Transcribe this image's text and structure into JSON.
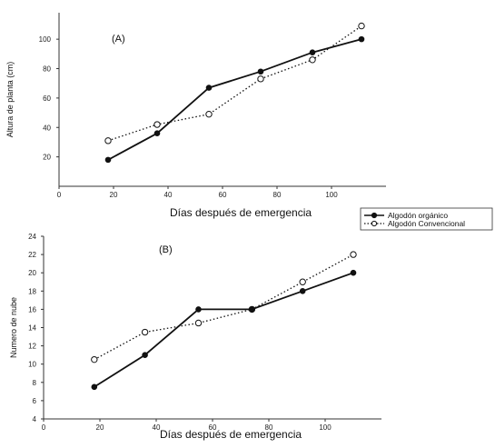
{
  "chart_data": [
    {
      "type": "line",
      "panel_label": "(A)",
      "xlabel": "Días después de emergencia",
      "ylabel": "Altura de planta (cm)",
      "x_ticks": [
        "0",
        "20",
        "40",
        "60",
        "80",
        "100"
      ],
      "y_ticks": [
        "20",
        "40",
        "60",
        "80",
        "100"
      ],
      "xlim": [
        0,
        120
      ],
      "ylim": [
        0,
        118
      ],
      "series": [
        {
          "name": "Algodón orgánico",
          "color": "#111111",
          "style": "solid",
          "marker": "filled-circle",
          "x": [
            18,
            36,
            55,
            74,
            93,
            111
          ],
          "y": [
            18,
            36,
            67,
            78,
            91,
            100
          ]
        },
        {
          "name": "Algodón Convencional",
          "color": "#111111",
          "style": "dotted",
          "marker": "open-circle",
          "x": [
            18,
            36,
            55,
            74,
            93,
            111
          ],
          "y": [
            31,
            42,
            49,
            73,
            86,
            109
          ]
        }
      ]
    },
    {
      "type": "line",
      "panel_label": "(B)",
      "xlabel": "Días después de emergencia",
      "ylabel": "Numero de nube",
      "x_ticks": [
        "0",
        "20",
        "40",
        "60",
        "80",
        "100"
      ],
      "y_ticks": [
        "4",
        "6",
        "8",
        "10",
        "12",
        "14",
        "16",
        "18",
        "20",
        "22",
        "24"
      ],
      "xlim": [
        0,
        120
      ],
      "ylim": [
        4,
        24
      ],
      "series": [
        {
          "name": "Algodón orgánico",
          "color": "#111111",
          "style": "solid",
          "marker": "filled-circle",
          "x": [
            18,
            36,
            55,
            74,
            92,
            110
          ],
          "y": [
            7.5,
            11,
            16,
            16,
            18,
            20
          ]
        },
        {
          "name": "Algodón Convencional",
          "color": "#111111",
          "style": "dotted",
          "marker": "open-circle",
          "x": [
            18,
            36,
            55,
            74,
            92,
            110
          ],
          "y": [
            10.5,
            13.5,
            14.5,
            16,
            19,
            22
          ]
        }
      ]
    }
  ],
  "legend": {
    "entries": [
      "Algodón orgánico",
      "Algodón Convencional"
    ],
    "placement": "between-panels-right"
  }
}
